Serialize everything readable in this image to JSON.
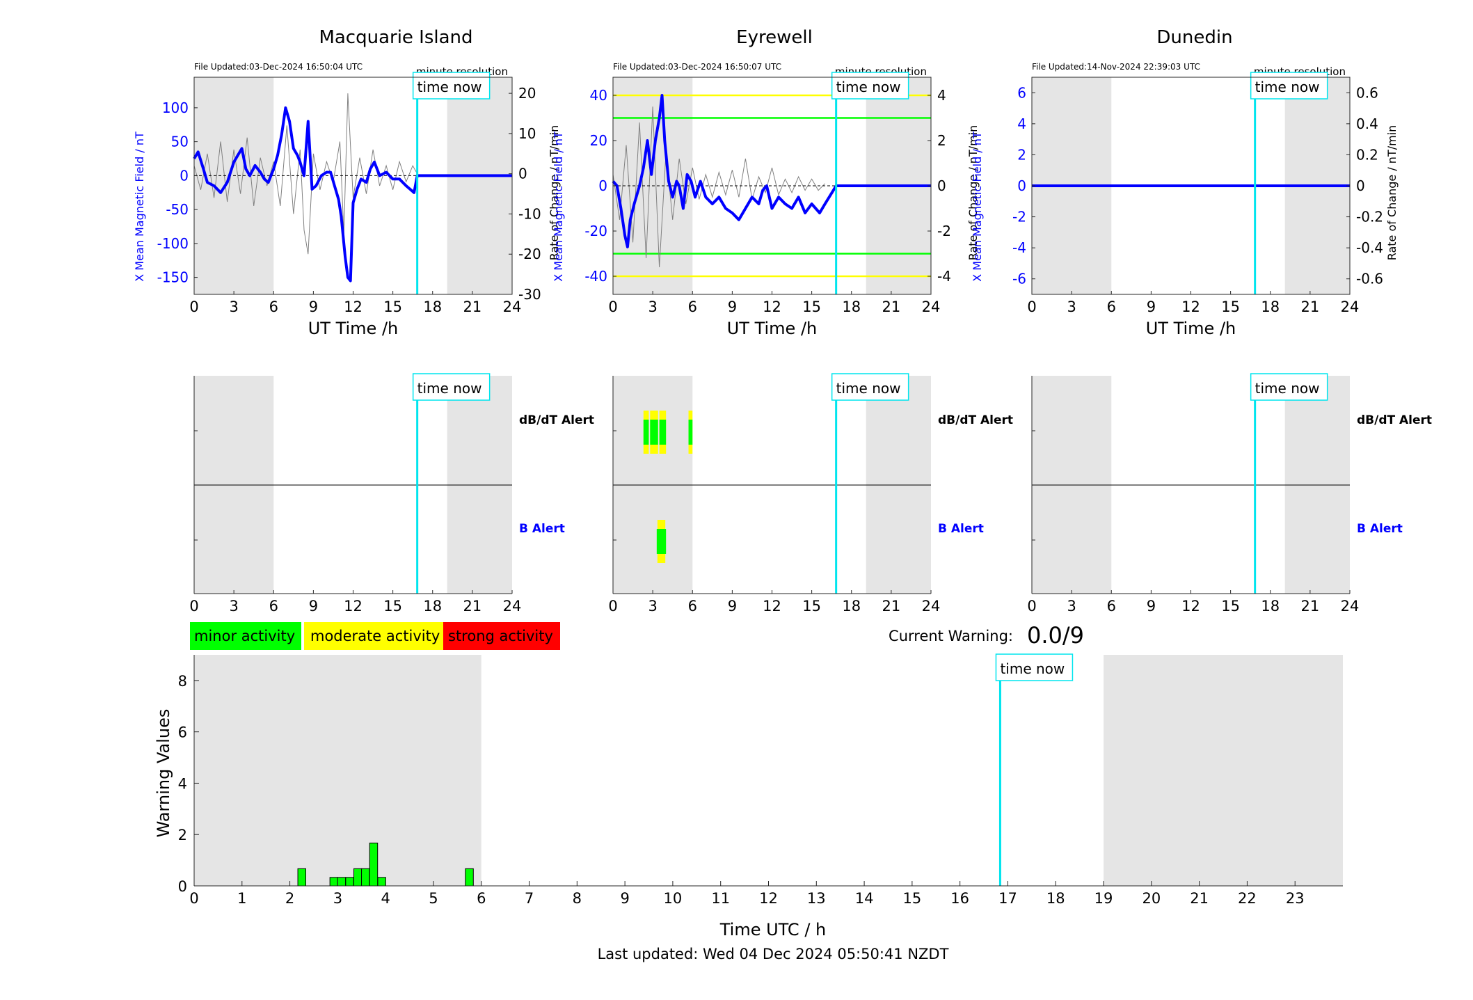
{
  "common": {
    "time_now_label": "time now",
    "minute_resolution_label": "minute resolution",
    "ut_xlabel": "UT Time /h",
    "ut_ticks": [
      0,
      3,
      6,
      9,
      12,
      15,
      18,
      21,
      24
    ],
    "now_hour": 16.84,
    "night_shading": [
      [
        0,
        6
      ],
      [
        19.1,
        24
      ]
    ],
    "dbdt_alert_label": "dB/dT Alert",
    "b_alert_label": "B Alert"
  },
  "colors": {
    "field": "#0000ff",
    "rate": "#808080",
    "time_now": "#00e5ee",
    "shade": "#e5e5e5",
    "minor": "#00ff00",
    "moderate": "#ffff00",
    "strong": "#ff0000"
  },
  "stations": [
    {
      "name": "Macquarie Island",
      "file_updated": "File Updated:03-Dec-2024 16:50:04 UTC",
      "ylabel_left": "X Mean Magnetic Field / nT",
      "ylabel_right": "Rate of Change / nT/min",
      "left_ylim": [
        -175,
        145
      ],
      "left_ticks": [
        -150,
        -100,
        -50,
        0,
        50,
        100
      ],
      "right_ylim": [
        -30,
        24
      ],
      "right_ticks": [
        -30,
        -20,
        -10,
        0,
        10,
        20
      ],
      "thresholds": [],
      "field_series": {
        "x": [
          0,
          0.3,
          0.7,
          1.0,
          1.5,
          2.0,
          2.5,
          3.0,
          3.3,
          3.6,
          3.9,
          4.2,
          4.6,
          5.0,
          5.3,
          5.6,
          6.0,
          6.3,
          6.6,
          6.9,
          7.2,
          7.5,
          7.8,
          8.0,
          8.3,
          8.6,
          8.9,
          9.2,
          9.6,
          10.0,
          10.3,
          10.6,
          10.9,
          11.1,
          11.4,
          11.6,
          11.8,
          12.0,
          12.3,
          12.6,
          13.0,
          13.3,
          13.6,
          14.0,
          14.5,
          15.0,
          15.5,
          16.0,
          16.3,
          16.6,
          16.84,
          24
        ],
        "y": [
          25,
          35,
          10,
          -10,
          -15,
          -25,
          -10,
          20,
          30,
          40,
          10,
          0,
          15,
          5,
          -5,
          -10,
          10,
          30,
          60,
          100,
          80,
          40,
          30,
          20,
          0,
          80,
          -20,
          -15,
          0,
          5,
          5,
          -15,
          -35,
          -60,
          -120,
          -150,
          -155,
          -40,
          -20,
          -5,
          -10,
          10,
          20,
          0,
          5,
          -5,
          -5,
          -15,
          -20,
          -25,
          0,
          0
        ]
      },
      "rate_series": {
        "x": [
          0,
          0.5,
          1,
          1.5,
          2,
          2.5,
          3,
          3.5,
          4,
          4.5,
          5,
          5.5,
          6,
          6.5,
          7,
          7.5,
          8,
          8.3,
          8.6,
          9,
          9.5,
          10,
          10.5,
          11,
          11.3,
          11.6,
          12,
          12.5,
          13,
          13.5,
          14,
          14.5,
          15,
          15.5,
          16,
          16.5,
          16.84
        ],
        "y": [
          2,
          -4,
          5,
          -6,
          8,
          -7,
          6,
          -5,
          9,
          -8,
          4,
          -3,
          3,
          -8,
          12,
          -10,
          6,
          -14,
          -20,
          5,
          -4,
          3,
          -2,
          8,
          -15,
          20,
          -6,
          4,
          -5,
          6,
          -3,
          2,
          -4,
          3,
          -2,
          2,
          0
        ]
      },
      "dbdt_alerts": [],
      "b_alerts": []
    },
    {
      "name": "Eyrewell",
      "file_updated": "File Updated:03-Dec-2024 16:50:07 UTC",
      "ylabel_left": "X Mean Magnetic Field / nT",
      "ylabel_right": "Rate of Change / nT/min",
      "left_ylim": [
        -48,
        48
      ],
      "left_ticks": [
        -40,
        -20,
        0,
        20,
        40
      ],
      "right_ylim": [
        -4.8,
        4.8
      ],
      "right_ticks": [
        -4,
        -2,
        0,
        2,
        4
      ],
      "thresholds": [
        {
          "value": 40,
          "color": "#ffff00"
        },
        {
          "value": 30,
          "color": "#00ff00"
        },
        {
          "value": -30,
          "color": "#00ff00"
        },
        {
          "value": -40,
          "color": "#ffff00"
        }
      ],
      "field_series": {
        "x": [
          0,
          0.3,
          0.6,
          0.9,
          1.1,
          1.3,
          1.6,
          2.0,
          2.3,
          2.6,
          2.9,
          3.2,
          3.5,
          3.7,
          3.9,
          4.2,
          4.5,
          4.8,
          5.0,
          5.3,
          5.6,
          5.9,
          6.2,
          6.6,
          7.0,
          7.5,
          8.0,
          8.5,
          9.0,
          9.5,
          10.0,
          10.5,
          11.0,
          11.3,
          11.6,
          12.0,
          12.5,
          13.0,
          13.5,
          14.0,
          14.5,
          15.0,
          15.3,
          15.6,
          16.0,
          16.84,
          24
        ],
        "y": [
          2,
          0,
          -10,
          -22,
          -27,
          -15,
          -8,
          0,
          8,
          20,
          5,
          20,
          30,
          40,
          20,
          2,
          -5,
          2,
          0,
          -10,
          5,
          2,
          -5,
          2,
          -5,
          -8,
          -5,
          -10,
          -12,
          -15,
          -10,
          -5,
          -8,
          -2,
          0,
          -10,
          -5,
          -8,
          -10,
          -5,
          -12,
          -8,
          -10,
          -12,
          -8,
          0,
          0
        ]
      },
      "rate_series": {
        "x": [
          0,
          0.5,
          1,
          1.5,
          2,
          2.5,
          3,
          3.5,
          4,
          4.5,
          5,
          5.5,
          6,
          6.5,
          7,
          7.5,
          8,
          8.5,
          9,
          9.5,
          10,
          10.5,
          11,
          11.5,
          12,
          12.5,
          13,
          13.5,
          14,
          14.5,
          15,
          15.5,
          16
        ],
        "y": [
          0.5,
          -1.5,
          1.8,
          -2.5,
          2.8,
          -3.2,
          3.5,
          -3.6,
          1.5,
          -1.5,
          1.2,
          -0.8,
          0.8,
          -0.6,
          0.5,
          -0.5,
          0.6,
          -0.4,
          0.7,
          -0.5,
          1.2,
          -0.6,
          0.4,
          -0.3,
          0.8,
          -0.4,
          0.3,
          -0.3,
          0.4,
          -0.2,
          0.3,
          -0.2,
          0.1
        ]
      },
      "dbdt_alerts": [
        [
          2.3,
          2.7
        ],
        [
          2.8,
          3.4
        ],
        [
          3.5,
          4.0
        ],
        [
          5.7,
          6.0
        ]
      ],
      "b_alerts": [
        [
          3.3,
          4.0
        ]
      ]
    },
    {
      "name": "Dunedin",
      "file_updated": "File Updated:14-Nov-2024 22:39:03 UTC",
      "ylabel_left": "X Mean Magnetic Field / nT",
      "ylabel_right": "Rate of Change / nT/min",
      "left_ylim": [
        -7,
        7
      ],
      "left_ticks": [
        -6,
        -4,
        -2,
        0,
        2,
        4,
        6
      ],
      "right_ylim": [
        -0.7,
        0.7
      ],
      "right_ticks": [
        -0.6,
        -0.4,
        -0.2,
        0,
        0.2,
        0.4,
        0.6
      ],
      "thresholds": [],
      "field_series": {
        "x": [
          0,
          24
        ],
        "y": [
          0,
          0
        ]
      },
      "rate_series": {
        "x": [],
        "y": []
      },
      "dbdt_alerts": [],
      "b_alerts": []
    }
  ],
  "legend": [
    {
      "label": "minor activity",
      "color": "#00ff00"
    },
    {
      "label": "moderate activity",
      "color": "#ffff00"
    },
    {
      "label": "strong activity",
      "color": "#ff0000"
    }
  ],
  "current_warning": {
    "label": "Current Warning:",
    "value": "0.0/9"
  },
  "chart_data": {
    "type": "bar",
    "xlabel": "Time UTC / h",
    "ylabel": "Warning Values",
    "xlim": [
      0,
      24
    ],
    "ylim": [
      0,
      9
    ],
    "x_ticks": [
      0,
      1,
      2,
      3,
      4,
      5,
      6,
      7,
      8,
      9,
      10,
      11,
      12,
      13,
      14,
      15,
      16,
      17,
      18,
      19,
      20,
      21,
      22,
      23
    ],
    "y_ticks": [
      0,
      2,
      4,
      6,
      8
    ],
    "bar_width_h": 0.1667,
    "bars": [
      {
        "x": 2.25,
        "value": 0.67
      },
      {
        "x": 2.92,
        "value": 0.33
      },
      {
        "x": 3.08,
        "value": 0.33
      },
      {
        "x": 3.25,
        "value": 0.33
      },
      {
        "x": 3.42,
        "value": 0.67
      },
      {
        "x": 3.58,
        "value": 0.67
      },
      {
        "x": 3.75,
        "value": 1.67
      },
      {
        "x": 3.92,
        "value": 0.33
      },
      {
        "x": 5.75,
        "value": 0.67
      }
    ],
    "night_shading": [
      [
        0,
        6
      ],
      [
        19,
        24
      ]
    ],
    "now_hour": 16.84
  },
  "footer": "Last updated: Wed 04 Dec 2024 05:50:41 NZDT"
}
